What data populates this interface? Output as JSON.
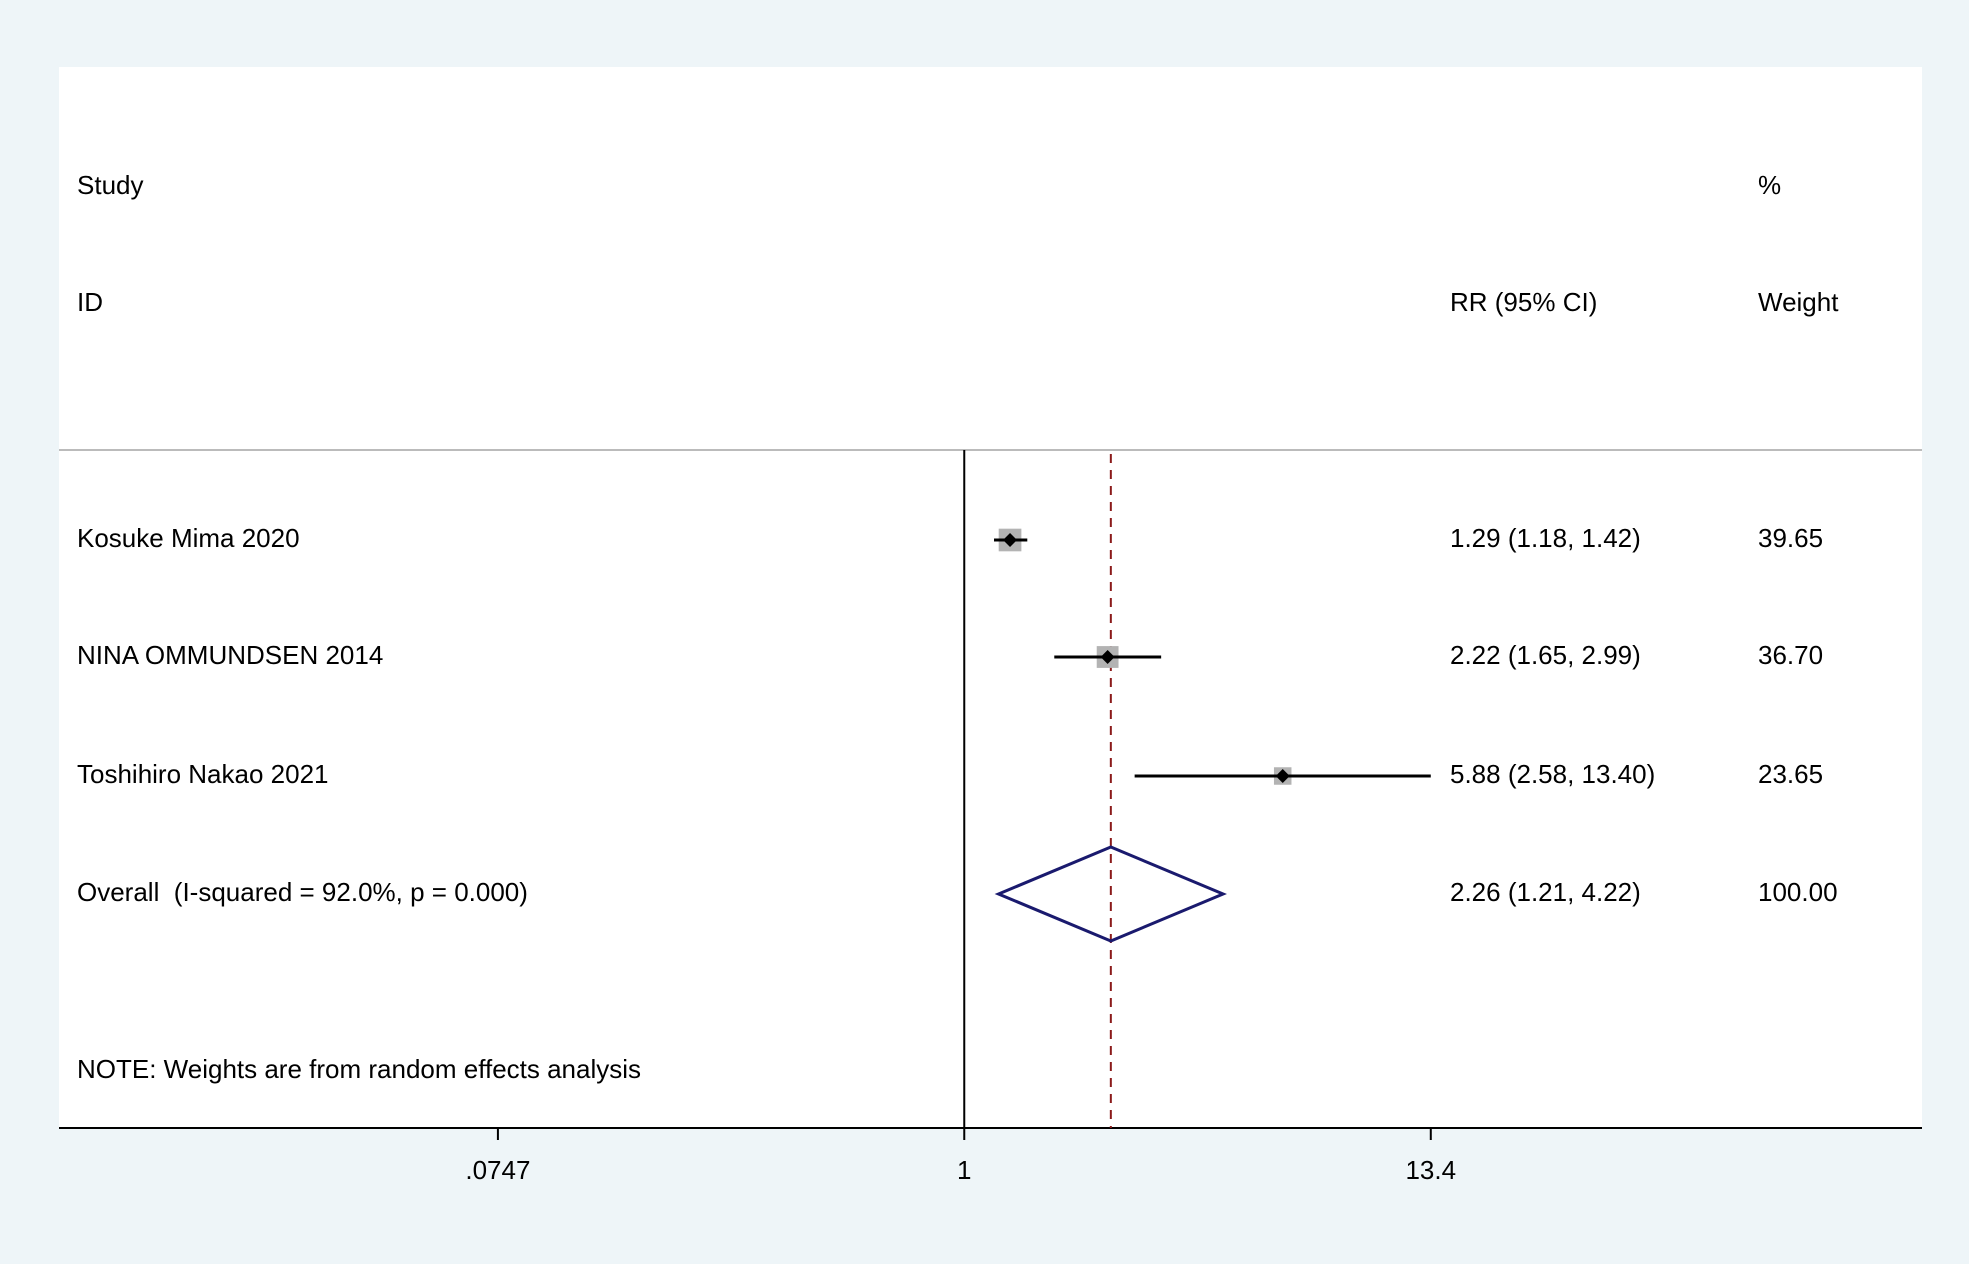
{
  "chart_data": {
    "type": "forest",
    "headers": {
      "study": "Study",
      "id": "ID",
      "percent": "%",
      "weight": "Weight",
      "effect": "RR (95% CI)"
    },
    "studies": [
      {
        "name": "Kosuke Mima 2020",
        "value": 1.29,
        "lower": 1.18,
        "upper": 1.42,
        "value_label": "1.29 (1.18, 1.42)",
        "weight": 39.65,
        "weight_label": "39.65"
      },
      {
        "name": "NINA OMMUNDSEN 2014",
        "value": 2.22,
        "lower": 1.65,
        "upper": 2.99,
        "value_label": "2.22 (1.65, 2.99)",
        "weight": 36.7,
        "weight_label": "36.70"
      },
      {
        "name": "Toshihiro Nakao 2021",
        "value": 5.88,
        "lower": 2.58,
        "upper": 13.4,
        "value_label": "5.88 (2.58, 13.40)",
        "weight": 23.65,
        "weight_label": "23.65"
      }
    ],
    "overall": {
      "name": "Overall  (I-squared = 92.0%, p = 0.000)",
      "value": 2.26,
      "lower": 1.21,
      "upper": 4.22,
      "value_label": "2.26 (1.21, 4.22)",
      "weight": 100,
      "weight_label": "100.00"
    },
    "note": "NOTE: Weights are from random effects analysis",
    "xscale": "log",
    "xlim": [
      0.0065,
      206
    ],
    "xticks": [
      {
        "value": 0.0747,
        "label": ".0747"
      },
      1,
      13.4
    ],
    "reference_line": 1,
    "colors": {
      "box": "#b3b3b3",
      "point": "#000000",
      "ci": "#000000",
      "diamond": "#1a1a6e",
      "overall_line": "#8b1a1a"
    }
  }
}
